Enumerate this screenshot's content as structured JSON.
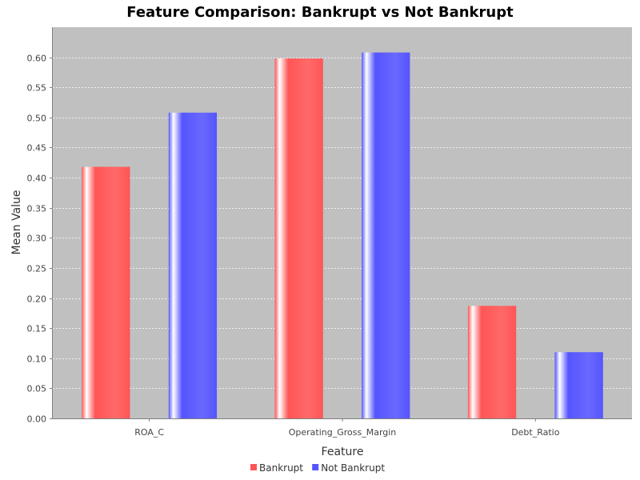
{
  "chart_data": {
    "type": "bar",
    "title": "Feature Comparison: Bankrupt vs Not Bankrupt",
    "xlabel": "Feature",
    "ylabel": "Mean Value",
    "categories": [
      "ROA_C",
      "Operating_Gross_Margin",
      "Debt_Ratio"
    ],
    "series": [
      {
        "name": "Bankrupt",
        "values": [
          0.418,
          0.598,
          0.187
        ],
        "color": "#ff5555"
      },
      {
        "name": "Not Bankrupt",
        "values": [
          0.508,
          0.608,
          0.11
        ],
        "color": "#5555ff"
      }
    ],
    "ylim": [
      0,
      0.65
    ],
    "yticks": [
      "0.00",
      "0.05",
      "0.10",
      "0.15",
      "0.20",
      "0.25",
      "0.30",
      "0.35",
      "0.40",
      "0.45",
      "0.50",
      "0.55",
      "0.60"
    ],
    "grid": true,
    "plot_background": "#c0c0c0",
    "legend_position": "bottom"
  }
}
